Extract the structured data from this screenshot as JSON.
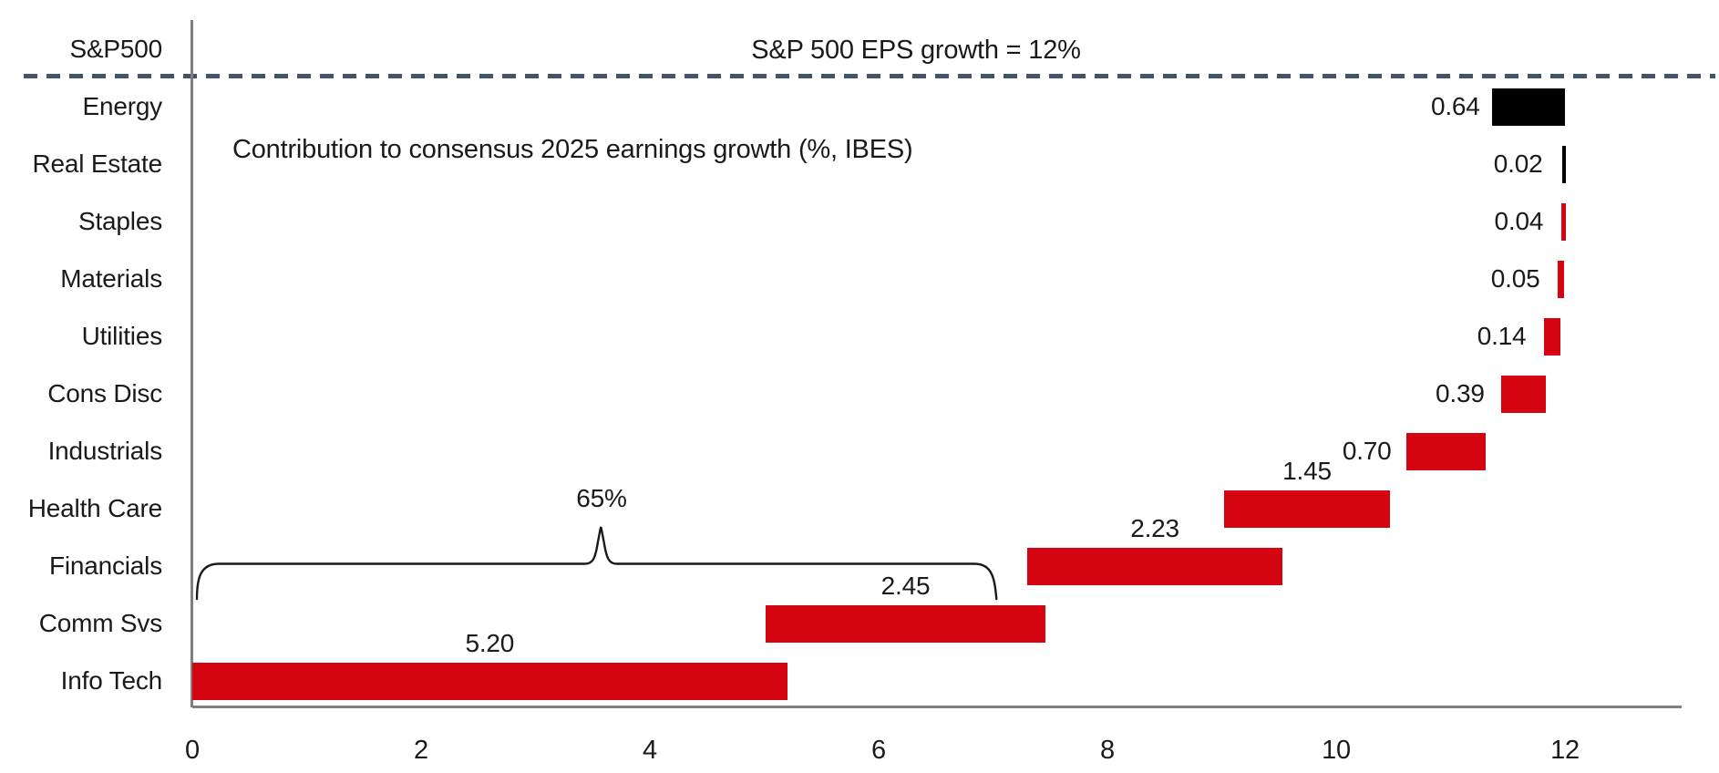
{
  "chart_data": {
    "type": "bar",
    "subtype": "waterfall",
    "orientation": "horizontal",
    "title": "Contribution to consensus 2025 earnings growth (%, IBES)",
    "top_annotation": "S&P 500 EPS growth = 12%",
    "categories": [
      "S&P500",
      "Energy",
      "Real Estate",
      "Staples",
      "Materials",
      "Utilities",
      "Cons Disc",
      "Industrials",
      "Health Care",
      "Financials",
      "Comm Svs",
      "Info Tech"
    ],
    "bars": [
      {
        "category": "Energy",
        "value": 0.64,
        "label": "0.64",
        "start": 11.36,
        "color": "#000000",
        "label_position": "side",
        "label_gap": 13
      },
      {
        "category": "Real Estate",
        "value": 0.02,
        "label": "0.02",
        "start": 11.98,
        "color": "#000000",
        "label_position": "side",
        "label_gap": 22
      },
      {
        "category": "Staples",
        "value": 0.04,
        "label": "0.04",
        "start": 11.97,
        "color": "#D40511",
        "label_position": "side",
        "label_gap": 20
      },
      {
        "category": "Materials",
        "value": 0.05,
        "label": "0.05",
        "start": 11.94,
        "color": "#D40511",
        "label_position": "side",
        "label_gap": 20
      },
      {
        "category": "Utilities",
        "value": 0.14,
        "label": "0.14",
        "start": 11.82,
        "color": "#D40511",
        "label_position": "side",
        "label_gap": 20
      },
      {
        "category": "Cons Disc",
        "value": 0.39,
        "label": "0.39",
        "start": 11.44,
        "color": "#D40511",
        "label_position": "side",
        "label_gap": 18
      },
      {
        "category": "Industrials",
        "value": 0.7,
        "label": "0.70",
        "start": 10.61,
        "color": "#D40511",
        "label_position": "side",
        "label_gap": 16
      },
      {
        "category": "Health Care",
        "value": 1.45,
        "label": "1.45",
        "start": 9.02,
        "color": "#D40511",
        "label_position": "above"
      },
      {
        "category": "Financials",
        "value": 2.23,
        "label": "2.23",
        "start": 7.3,
        "color": "#D40511",
        "label_position": "above"
      },
      {
        "category": "Comm Svs",
        "value": 2.45,
        "label": "2.45",
        "start": 5.01,
        "color": "#D40511",
        "label_position": "above"
      },
      {
        "category": "Info Tech",
        "value": 5.2,
        "label": "5.20",
        "start": 0.0,
        "color": "#D40511",
        "label_position": "above"
      }
    ],
    "total_line_value": 12,
    "bracket": {
      "label": "65%",
      "x_from": 0.04,
      "x_to": 7.03,
      "x_tip": 3.56
    },
    "x_ticks": [
      {
        "value": 0,
        "label": "0"
      },
      {
        "value": 2,
        "label": "2"
      },
      {
        "value": 4,
        "label": "4"
      },
      {
        "value": 6,
        "label": "6"
      },
      {
        "value": 8,
        "label": "8"
      },
      {
        "value": 10,
        "label": "10"
      },
      {
        "value": 12,
        "label": "12"
      }
    ],
    "xlim": [
      0,
      13.35
    ],
    "grid": false,
    "legend": "none",
    "colors": {
      "bar_red": "#D40511",
      "bar_black": "#000000",
      "dashed_line": "#44546A",
      "axis": "#7f7f7f",
      "text": "#1a1a1a",
      "background": "#ffffff"
    }
  }
}
